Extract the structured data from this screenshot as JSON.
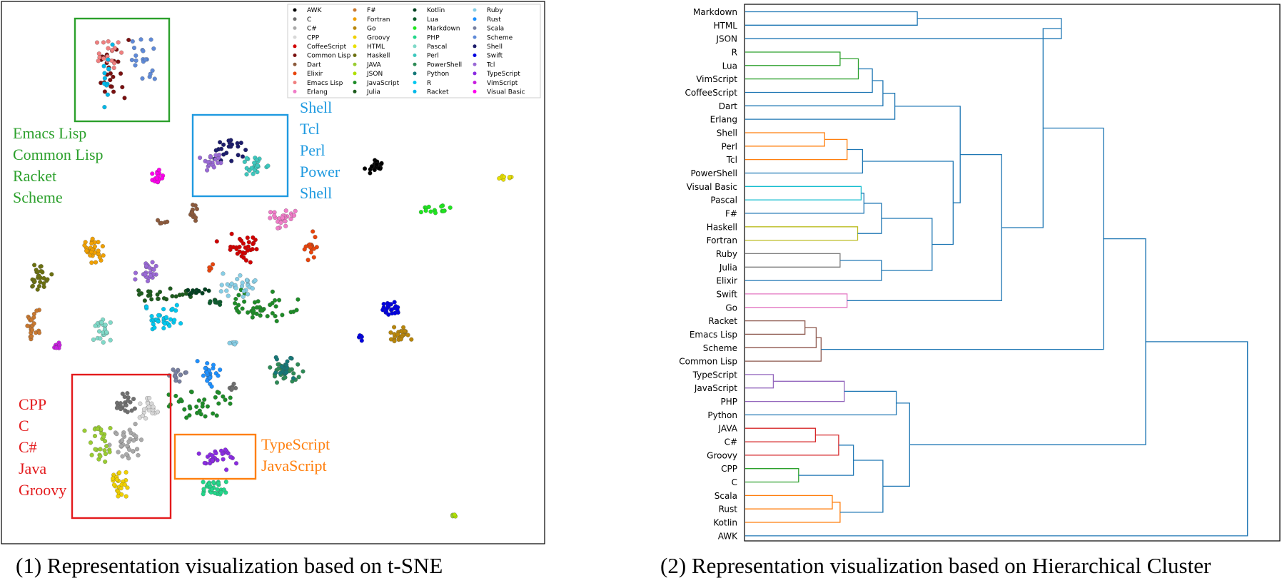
{
  "chart_data": [
    {
      "type": "scatter",
      "caption": "(1) Representation visualization based on t-SNE",
      "legend_placement": "top-right",
      "series": [
        {
          "name": "AWK",
          "color": "#000000",
          "clusters": [
            {
              "x": 527,
              "y": 232,
              "n": 26,
              "rx": 13,
              "ry": 10
            }
          ]
        },
        {
          "name": "C",
          "color": "#707070",
          "clusters": [
            {
              "x": 173,
              "y": 567,
              "n": 22,
              "rx": 15,
              "ry": 16
            },
            {
              "x": 330,
              "y": 542,
              "n": 6,
              "rx": 10,
              "ry": 5
            }
          ]
        },
        {
          "name": "C#",
          "color": "#aaaaaa",
          "clusters": [
            {
              "x": 175,
              "y": 620,
              "n": 34,
              "rx": 24,
              "ry": 22
            }
          ]
        },
        {
          "name": "CPP",
          "color": "#d8d8d8",
          "clusters": [
            {
              "x": 210,
              "y": 576,
              "n": 20,
              "rx": 14,
              "ry": 22
            }
          ]
        },
        {
          "name": "CoffeeScript",
          "color": "#d10000",
          "clusters": [
            {
              "x": 340,
              "y": 347,
              "n": 32,
              "rx": 30,
              "ry": 18
            }
          ]
        },
        {
          "name": "Common Lisp",
          "color": "#7a1010",
          "clusters": [
            {
              "x": 162,
              "y": 94,
              "n": 24,
              "rx": 25,
              "ry": 38
            }
          ]
        },
        {
          "name": "Dart",
          "color": "#8c5a3c",
          "clusters": [
            {
              "x": 272,
              "y": 296,
              "n": 12,
              "rx": 8,
              "ry": 14
            },
            {
              "x": 227,
              "y": 311,
              "n": 5,
              "rx": 8,
              "ry": 3
            }
          ]
        },
        {
          "name": "Elixir",
          "color": "#e8440c",
          "clusters": [
            {
              "x": 436,
              "y": 347,
              "n": 18,
              "rx": 8,
              "ry": 20
            },
            {
              "x": 296,
              "y": 373,
              "n": 5,
              "rx": 4,
              "ry": 5
            }
          ]
        },
        {
          "name": "Emacs Lisp",
          "color": "#f08080",
          "clusters": [
            {
              "x": 152,
              "y": 78,
              "n": 18,
              "rx": 22,
              "ry": 28
            }
          ]
        },
        {
          "name": "Erlang",
          "color": "#f07cc8",
          "clusters": [
            {
              "x": 395,
              "y": 305,
              "n": 26,
              "rx": 24,
              "ry": 14
            }
          ]
        },
        {
          "name": "F#",
          "color": "#c87830",
          "clusters": [
            {
              "x": 46,
              "y": 457,
              "n": 22,
              "rx": 9,
              "ry": 24
            }
          ]
        },
        {
          "name": "Fortran",
          "color": "#f0a000",
          "clusters": [
            {
              "x": 129,
              "y": 350,
              "n": 30,
              "rx": 18,
              "ry": 18
            }
          ]
        },
        {
          "name": "Go",
          "color": "#b8860b",
          "clusters": [
            {
              "x": 558,
              "y": 467,
              "n": 24,
              "rx": 16,
              "ry": 12
            }
          ]
        },
        {
          "name": "Groovy",
          "color": "#f0d000",
          "clusters": [
            {
              "x": 165,
              "y": 675,
              "n": 26,
              "rx": 16,
              "ry": 28
            }
          ]
        },
        {
          "name": "HTML",
          "color": "#e8e000",
          "clusters": [
            {
              "x": 712,
              "y": 249,
              "n": 8,
              "rx": 14,
              "ry": 4
            }
          ]
        },
        {
          "name": "Haskell",
          "color": "#6b7010",
          "clusters": [
            {
              "x": 56,
              "y": 389,
              "n": 28,
              "rx": 14,
              "ry": 20
            }
          ]
        },
        {
          "name": "JAVA",
          "color": "#9acd32",
          "clusters": [
            {
              "x": 140,
              "y": 620,
              "n": 28,
              "rx": 20,
              "ry": 30
            },
            {
              "x": 635,
              "y": 722,
              "n": 2,
              "rx": 2,
              "ry": 4
            }
          ]
        },
        {
          "name": "JSON",
          "color": "#b0e000",
          "clusters": [
            {
              "x": 637,
              "y": 723,
              "n": 2,
              "rx": 2,
              "ry": 4
            }
          ]
        },
        {
          "name": "JavaScript",
          "color": "#1e8c28",
          "clusters": [
            {
              "x": 362,
              "y": 430,
              "n": 44,
              "rx": 52,
              "ry": 22
            },
            {
              "x": 283,
              "y": 568,
              "n": 34,
              "rx": 40,
              "ry": 24
            }
          ]
        },
        {
          "name": "Julia",
          "color": "#1d5c1d",
          "clusters": [
            {
              "x": 230,
              "y": 413,
              "n": 26,
              "rx": 48,
              "ry": 10
            }
          ]
        },
        {
          "name": "Kotlin",
          "color": "#004020",
          "clusters": [
            {
              "x": 276,
              "y": 408,
              "n": 12,
              "rx": 16,
              "ry": 8
            }
          ]
        },
        {
          "name": "Lua",
          "color": "#0b5d2d",
          "clusters": [
            {
              "x": 305,
              "y": 424,
              "n": 10,
              "rx": 12,
              "ry": 6
            }
          ]
        },
        {
          "name": "Markdown",
          "color": "#1fe61f",
          "clusters": [
            {
              "x": 612,
              "y": 294,
              "n": 14,
              "rx": 28,
              "ry": 8
            }
          ]
        },
        {
          "name": "PHP",
          "color": "#22d68a",
          "clusters": [
            {
              "x": 300,
              "y": 683,
              "n": 30,
              "rx": 24,
              "ry": 14
            }
          ]
        },
        {
          "name": "Pascal",
          "color": "#7fd9c8",
          "clusters": [
            {
              "x": 144,
              "y": 460,
              "n": 24,
              "rx": 14,
              "ry": 22
            }
          ]
        },
        {
          "name": "Perl",
          "color": "#3dc8be",
          "clusters": [
            {
              "x": 358,
              "y": 232,
              "n": 24,
              "rx": 20,
              "ry": 16
            }
          ]
        },
        {
          "name": "PowerShell",
          "color": "#2e8b57",
          "clusters": [
            {
              "x": 398,
              "y": 522,
              "n": 26,
              "rx": 22,
              "ry": 18
            }
          ]
        },
        {
          "name": "Python",
          "color": "#147878",
          "clusters": [
            {
              "x": 398,
              "y": 516,
              "n": 20,
              "rx": 20,
              "ry": 18
            }
          ]
        },
        {
          "name": "R",
          "color": "#00c8f0",
          "clusters": [
            {
              "x": 228,
              "y": 448,
              "n": 36,
              "rx": 28,
              "ry": 20
            }
          ]
        },
        {
          "name": "Racket",
          "color": "#00b8e8",
          "clusters": [
            {
              "x": 145,
              "y": 104,
              "n": 12,
              "rx": 22,
              "ry": 34
            }
          ]
        },
        {
          "name": "Ruby",
          "color": "#87cee6",
          "clusters": [
            {
              "x": 340,
              "y": 400,
              "n": 28,
              "rx": 34,
              "ry": 14
            },
            {
              "x": 330,
              "y": 481,
              "n": 6,
              "rx": 14,
              "ry": 3
            }
          ]
        },
        {
          "name": "Rust",
          "color": "#1e90ff",
          "clusters": [
            {
              "x": 293,
              "y": 523,
              "n": 26,
              "rx": 16,
              "ry": 24
            }
          ]
        },
        {
          "name": "Scala",
          "color": "#7880a0",
          "clusters": [
            {
              "x": 248,
              "y": 523,
              "n": 14,
              "rx": 14,
              "ry": 14
            }
          ]
        },
        {
          "name": "Scheme",
          "color": "#5f8ad8",
          "clusters": [
            {
              "x": 205,
              "y": 86,
              "n": 20,
              "rx": 20,
              "ry": 32
            }
          ]
        },
        {
          "name": "Shell",
          "color": "#1c1c6b",
          "clusters": [
            {
              "x": 323,
              "y": 210,
              "n": 22,
              "rx": 22,
              "ry": 16
            }
          ]
        },
        {
          "name": "Swift",
          "color": "#0000e0",
          "clusters": [
            {
              "x": 548,
              "y": 433,
              "n": 24,
              "rx": 14,
              "ry": 12
            },
            {
              "x": 505,
              "y": 474,
              "n": 5,
              "rx": 4,
              "ry": 5
            }
          ]
        },
        {
          "name": "Tcl",
          "color": "#9a6ad6",
          "clusters": [
            {
              "x": 295,
              "y": 228,
              "n": 18,
              "rx": 18,
              "ry": 12
            },
            {
              "x": 210,
              "y": 379,
              "n": 22,
              "rx": 18,
              "ry": 16
            }
          ]
        },
        {
          "name": "TypeScript",
          "color": "#8a2be2",
          "clusters": [
            {
              "x": 302,
              "y": 640,
              "n": 30,
              "rx": 34,
              "ry": 16
            }
          ]
        },
        {
          "name": "VimScript",
          "color": "#c81ee0",
          "clusters": [
            {
              "x": 78,
              "y": 485,
              "n": 8,
              "rx": 6,
              "ry": 8
            }
          ]
        },
        {
          "name": "Visual Basic",
          "color": "#ff00ee",
          "clusters": [
            {
              "x": 220,
              "y": 246,
              "n": 16,
              "rx": 8,
              "ry": 10
            }
          ]
        }
      ],
      "annotations": [
        {
          "lines": [
            "Emacs Lisp",
            "Common Lisp",
            "Racket",
            "Scheme"
          ],
          "color": "#2ca02c"
        },
        {
          "lines": [
            "Shell",
            "Tcl",
            "Perl",
            "Power",
            "Shell"
          ],
          "color": "#1f9ae0"
        },
        {
          "lines": [
            "CPP",
            "C",
            "C#",
            "Java",
            "Groovy"
          ],
          "color": "#e31a1c"
        },
        {
          "lines": [
            "TypeScript",
            "JavaScript"
          ],
          "color": "#ff7f0e"
        }
      ]
    },
    {
      "type": "dendrogram",
      "caption": "(2) Representation visualization based on Hierarchical Cluster",
      "leaves": [
        "Markdown",
        "HTML",
        "JSON",
        "R",
        "Lua",
        "VimScript",
        "CoffeeScript",
        "Dart",
        "Erlang",
        "Shell",
        "Perl",
        "Tcl",
        "PowerShell",
        "Visual Basic",
        "Pascal",
        "F#",
        "Haskell",
        "Fortran",
        "Ruby",
        "Julia",
        "Elixir",
        "Swift",
        "Go",
        "Racket",
        "Emacs Lisp",
        "Scheme",
        "Common Lisp",
        "TypeScript",
        "JavaScript",
        "PHP",
        "Python",
        "JAVA",
        "C#",
        "Groovy",
        "CPP",
        "C",
        "Scala",
        "Rust",
        "Kotlin",
        "AWK"
      ],
      "merges": [
        {
          "a": 0,
          "b": 1,
          "h": 0.245,
          "color": "#1f77b4"
        },
        {
          "a": 40,
          "b": 2,
          "h": 0.45,
          "color": "#1f77b4"
        },
        {
          "a": 3,
          "b": 4,
          "h": 0.135,
          "color": "#2ca02c"
        },
        {
          "a": 42,
          "b": 5,
          "h": 0.161,
          "color": "#2ca02c"
        },
        {
          "a": 43,
          "b": 6,
          "h": 0.181,
          "color": "#1f77b4"
        },
        {
          "a": 44,
          "b": 7,
          "h": 0.196,
          "color": "#1f77b4"
        },
        {
          "a": 45,
          "b": 8,
          "h": 0.213,
          "color": "#1f77b4"
        },
        {
          "a": 9,
          "b": 10,
          "h": 0.113,
          "color": "#ff7f0e"
        },
        {
          "a": 47,
          "b": 11,
          "h": 0.145,
          "color": "#ff7f0e"
        },
        {
          "a": 48,
          "b": 12,
          "h": 0.167,
          "color": "#1f77b4"
        },
        {
          "a": 13,
          "b": 14,
          "h": 0.165,
          "color": "#17becf"
        },
        {
          "a": 50,
          "b": 15,
          "h": 0.169,
          "color": "#1f77b4"
        },
        {
          "a": 16,
          "b": 17,
          "h": 0.16,
          "color": "#bcbd22"
        },
        {
          "a": 51,
          "b": 52,
          "h": 0.194,
          "color": "#1f77b4"
        },
        {
          "a": 18,
          "b": 19,
          "h": 0.135,
          "color": "#7f7f7f"
        },
        {
          "a": 54,
          "b": 20,
          "h": 0.194,
          "color": "#1f77b4"
        },
        {
          "a": 53,
          "b": 55,
          "h": 0.266,
          "color": "#1f77b4"
        },
        {
          "a": 49,
          "b": 56,
          "h": 0.296,
          "color": "#1f77b4"
        },
        {
          "a": 46,
          "b": 57,
          "h": 0.306,
          "color": "#1f77b4"
        },
        {
          "a": 21,
          "b": 22,
          "h": 0.145,
          "color": "#e377c2"
        },
        {
          "a": 58,
          "b": 59,
          "h": 0.365,
          "color": "#1f77b4"
        },
        {
          "a": 41,
          "b": 60,
          "h": 0.424,
          "color": "#1f77b4"
        },
        {
          "a": 23,
          "b": 24,
          "h": 0.085,
          "color": "#8c564b"
        },
        {
          "a": 62,
          "b": 25,
          "h": 0.101,
          "color": "#8c564b"
        },
        {
          "a": 63,
          "b": 26,
          "h": 0.108,
          "color": "#8c564b"
        },
        {
          "a": 61,
          "b": 64,
          "h": 0.51,
          "color": "#1f77b4"
        },
        {
          "a": 27,
          "b": 28,
          "h": 0.04,
          "color": "#9467bd"
        },
        {
          "a": 66,
          "b": 29,
          "h": 0.141,
          "color": "#9467bd"
        },
        {
          "a": 67,
          "b": 30,
          "h": 0.215,
          "color": "#1f77b4"
        },
        {
          "a": 31,
          "b": 32,
          "h": 0.1,
          "color": "#d62728"
        },
        {
          "a": 69,
          "b": 33,
          "h": 0.133,
          "color": "#d62728"
        },
        {
          "a": 34,
          "b": 35,
          "h": 0.076,
          "color": "#2ca02c"
        },
        {
          "a": 70,
          "b": 71,
          "h": 0.154,
          "color": "#1f77b4"
        },
        {
          "a": 36,
          "b": 37,
          "h": 0.124,
          "color": "#ff7f0e"
        },
        {
          "a": 73,
          "b": 38,
          "h": 0.135,
          "color": "#ff7f0e"
        },
        {
          "a": 72,
          "b": 74,
          "h": 0.196,
          "color": "#1f77b4"
        },
        {
          "a": 68,
          "b": 75,
          "h": 0.234,
          "color": "#1f77b4"
        },
        {
          "a": 65,
          "b": 76,
          "h": 0.57,
          "color": "#1f77b4"
        },
        {
          "a": 77,
          "b": 39,
          "h": 0.715,
          "color": "#1f77b4"
        }
      ]
    }
  ]
}
